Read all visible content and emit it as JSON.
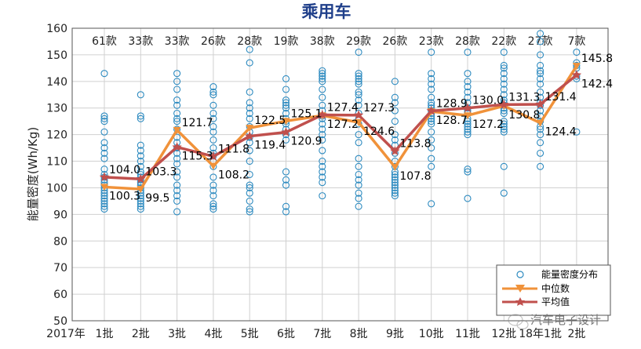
{
  "chart_data": {
    "type": "line",
    "title": "乘用车",
    "ylabel": "能量密度(Wh/Kg)",
    "ylim": [
      50,
      160
    ],
    "yticks": [
      50,
      60,
      70,
      80,
      90,
      100,
      110,
      120,
      130,
      140,
      150,
      160
    ],
    "x_origin_label": "2017年",
    "categories": [
      "1批",
      "2批",
      "3批",
      "4批",
      "5批",
      "6批",
      "7批",
      "8批",
      "9批",
      "10批",
      "11批",
      "12批",
      "18年1批",
      "2批"
    ],
    "counts": [
      "61款",
      "33款",
      "33款",
      "26款",
      "28款",
      "19款",
      "38款",
      "29款",
      "26款",
      "23款",
      "28款",
      "22款",
      "27款",
      "7款"
    ],
    "grid": true,
    "legend_position": "bottom-right",
    "series": [
      {
        "name": "中位数",
        "color": "#f0923a",
        "marker": "triangle-down",
        "values": [
          100.3,
          99.5,
          121.7,
          108.2,
          122.5,
          125.1,
          127.2,
          124.6,
          107.8,
          128.7,
          127.2,
          130.8,
          124.4,
          145.8
        ],
        "labels": [
          "100.3",
          "99.5",
          "121.7",
          "108.2",
          "122.5",
          "125.1",
          "127.2",
          "124.6",
          "107.8",
          "128.7",
          "127.2",
          "130.8",
          "124.4",
          "145.8"
        ]
      },
      {
        "name": "平均值",
        "color": "#c0504d",
        "marker": "star",
        "values": [
          104.0,
          103.3,
          115.3,
          111.8,
          119.4,
          120.9,
          127.4,
          127.3,
          113.8,
          128.9,
          130.0,
          131.3,
          131.4,
          142.4
        ],
        "labels": [
          "104.0",
          "103.3",
          "115.3",
          "111.8",
          "119.4",
          "120.9",
          "127.4",
          "127.3",
          "113.8",
          "128.9",
          "130.0",
          "131.3",
          "131.4",
          "142.4"
        ]
      }
    ],
    "scatter": {
      "name": "能量密度分布",
      "color": "#2e8bc0",
      "points": [
        [
          143,
          127,
          126,
          125,
          121,
          117,
          115,
          113,
          111,
          107,
          105,
          104,
          103,
          102,
          101,
          100,
          99,
          98,
          97,
          96,
          95,
          94,
          93,
          92
        ],
        [
          135,
          127,
          126,
          116,
          114,
          112,
          110,
          108,
          106,
          105,
          104,
          103,
          102,
          101,
          100,
          99,
          98,
          97,
          96,
          95,
          94,
          93,
          92
        ],
        [
          143,
          140,
          137,
          133,
          131,
          128,
          126,
          125,
          122,
          119,
          117,
          115,
          113,
          111,
          109,
          106,
          104,
          101,
          99,
          97,
          95,
          91
        ],
        [
          138,
          136,
          135,
          131,
          128,
          126,
          123,
          121,
          118,
          115,
          113,
          112,
          110,
          108,
          104,
          101,
          99,
          97,
          94,
          93,
          92
        ],
        [
          152,
          147,
          136,
          132,
          130,
          128,
          126,
          123,
          121,
          119,
          117,
          114,
          110,
          105,
          101,
          100,
          98,
          95,
          92,
          91
        ],
        [
          141,
          137,
          133,
          132,
          131,
          130,
          128,
          126,
          125,
          124,
          122,
          120,
          118,
          106,
          103,
          101,
          93,
          91
        ],
        [
          144,
          143,
          142,
          141,
          140,
          137,
          134,
          131,
          129,
          127,
          126,
          124,
          122,
          120,
          118,
          114,
          110,
          108,
          106,
          104,
          102,
          97
        ],
        [
          151,
          143,
          142,
          141,
          140,
          139,
          136,
          135,
          133,
          131,
          128,
          126,
          124,
          120,
          117,
          111,
          108,
          105,
          103,
          101,
          98,
          96,
          93
        ],
        [
          140,
          134,
          132,
          129,
          125,
          120,
          118,
          116,
          113,
          110,
          108,
          106,
          105,
          104,
          103,
          102,
          101,
          100,
          99,
          98,
          97
        ],
        [
          151,
          143,
          141,
          139,
          137,
          134,
          132,
          131,
          130,
          129,
          128,
          127,
          126,
          125,
          124,
          121,
          118,
          115,
          111,
          108,
          94
        ],
        [
          151,
          143,
          140,
          138,
          136,
          134,
          132,
          130,
          129,
          128,
          126,
          125,
          124,
          123,
          122,
          121,
          120,
          107,
          106,
          96
        ],
        [
          151,
          146,
          145,
          143,
          141,
          139,
          137,
          135,
          133,
          132,
          131,
          130,
          129,
          128,
          125,
          124,
          123,
          122,
          121,
          108,
          98
        ],
        [
          158,
          155,
          150,
          146,
          144,
          143,
          141,
          139,
          136,
          134,
          132,
          131,
          129,
          127,
          125,
          123,
          122,
          120,
          117,
          113,
          108
        ],
        [
          151,
          147,
          146,
          145,
          142,
          141,
          121
        ]
      ]
    }
  },
  "watermark": "汽车电子设计"
}
